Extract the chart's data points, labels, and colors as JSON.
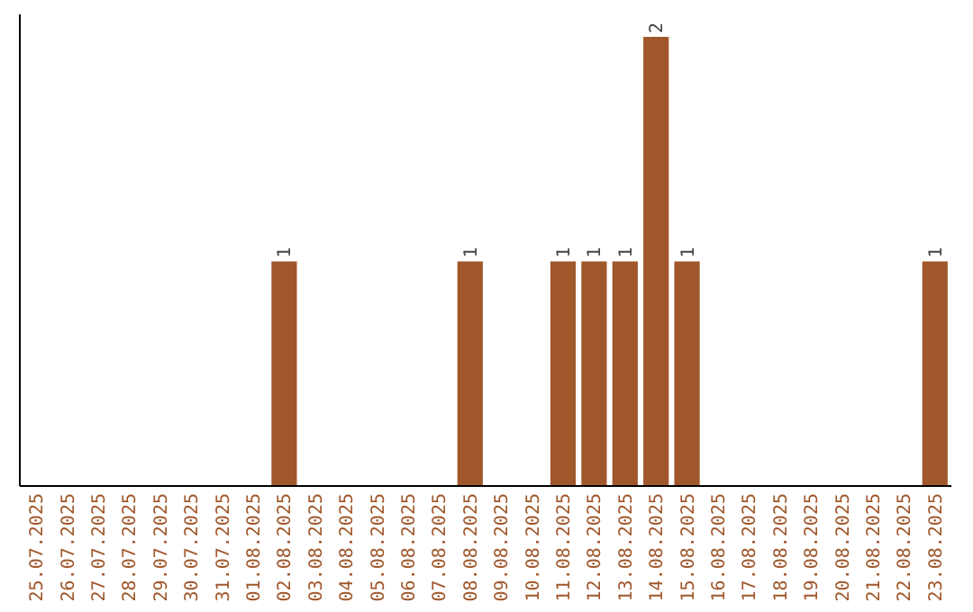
{
  "chart_data": {
    "type": "bar",
    "categories": [
      "25.07.2025",
      "26.07.2025",
      "27.07.2025",
      "28.07.2025",
      "29.07.2025",
      "30.07.2025",
      "31.07.2025",
      "01.08.2025",
      "02.08.2025",
      "03.08.2025",
      "04.08.2025",
      "05.08.2025",
      "06.08.2025",
      "07.08.2025",
      "08.08.2025",
      "09.08.2025",
      "10.08.2025",
      "11.08.2025",
      "12.08.2025",
      "13.08.2025",
      "14.08.2025",
      "15.08.2025",
      "16.08.2025",
      "17.08.2025",
      "18.08.2025",
      "19.08.2025",
      "20.08.2025",
      "21.08.2025",
      "22.08.2025",
      "23.08.2025"
    ],
    "values": [
      0,
      0,
      0,
      0,
      0,
      0,
      0,
      0,
      1,
      0,
      0,
      0,
      0,
      0,
      1,
      0,
      0,
      1,
      1,
      1,
      2,
      1,
      0,
      0,
      0,
      0,
      0,
      0,
      0,
      1
    ],
    "value_labels": [
      null,
      null,
      null,
      null,
      null,
      null,
      null,
      null,
      "1",
      null,
      null,
      null,
      null,
      null,
      "1",
      null,
      null,
      "1",
      "1",
      "1",
      "2",
      "1",
      null,
      null,
      null,
      null,
      null,
      null,
      null,
      "1"
    ],
    "color": "#a0572b",
    "ylim": [
      0,
      2.1
    ],
    "tick_labels": "x"
  }
}
